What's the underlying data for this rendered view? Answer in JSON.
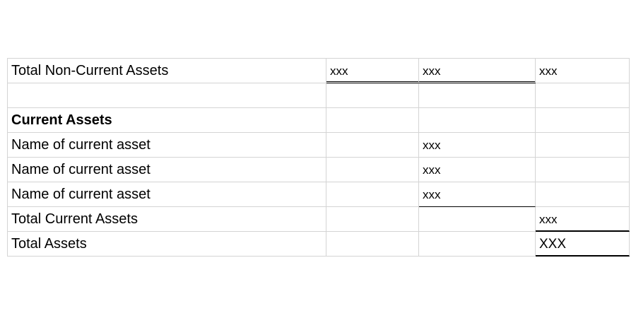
{
  "rows": [
    {
      "label": "Total Non-Current Assets",
      "col1": "xxx",
      "col2": "xxx",
      "col3": "xxx"
    },
    {
      "label": "",
      "col1": "",
      "col2": "",
      "col3": ""
    },
    {
      "label": "Current Assets",
      "col1": "",
      "col2": "",
      "col3": ""
    },
    {
      "label": "Name of current asset",
      "col1": "",
      "col2": "xxx",
      "col3": ""
    },
    {
      "label": "Name of current asset",
      "col1": "",
      "col2": "xxx",
      "col3": ""
    },
    {
      "label": "Name of current asset",
      "col1": "",
      "col2": "xxx",
      "col3": ""
    },
    {
      "label": "Total Current Assets",
      "col1": "",
      "col2": "",
      "col3": "xxx"
    },
    {
      "label": "Total Assets",
      "col1": "",
      "col2": "",
      "col3": "XXX"
    }
  ]
}
